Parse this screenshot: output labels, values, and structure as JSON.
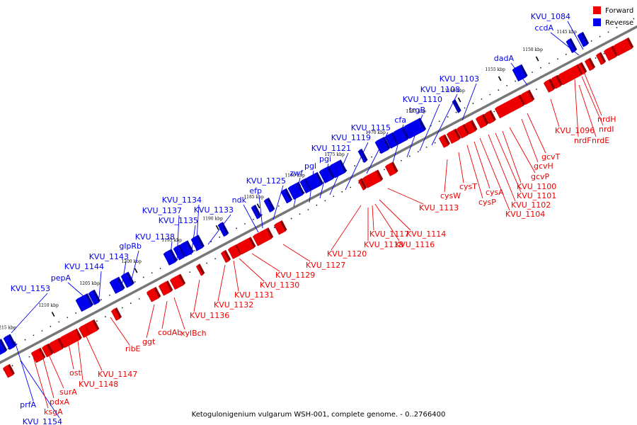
{
  "caption": "Ketogulonigenium vulgarum WSH-001, complete genome. - 0..2766400",
  "legend": [
    {
      "label": "Forward",
      "color": "#ee0000"
    },
    {
      "label": "Reverse",
      "color": "#0000ee"
    }
  ],
  "colors": {
    "forward": "#ee0000",
    "reverse": "#0000ee",
    "backbone": "#777777"
  },
  "ticks": [
    "1145 kbp",
    "1150 kbp",
    "1155 kbp",
    "1160 kbp",
    "1165 kbp",
    "1170 kbp",
    "1175 kbp",
    "1180 kbp",
    "1185 kbp",
    "1190 kbp",
    "1195 kbp",
    "1200 kbp",
    "1205 kbp",
    "1210 kbp",
    "1215 kbp"
  ],
  "reverse_labels": [
    "KVU_1084",
    "ccdA",
    "dadA",
    "KVU_1103",
    "KVU_1108",
    "KVU_1110",
    "trgB",
    "cfa",
    "KVU_1115",
    "KVU_1119",
    "KVU_1121",
    "pgi",
    "pgl",
    "zwf",
    "KVU_1125",
    "efp",
    "ndk",
    "KVU_1134",
    "KVU_1137",
    "KVU_1135",
    "KVU_1133",
    "KVU_1138",
    "glpRb",
    "KVU_1143",
    "KVU_1144",
    "pepA",
    "KVU_1153",
    "prfA",
    "KVU_1154"
  ],
  "forward_labels": [
    "nrdH",
    "nrdI",
    "nrdF",
    "nrdE",
    "KVU_1096",
    "gcvT",
    "gcvH",
    "gcvP",
    "KVU_1100",
    "KVU_1101",
    "KVU_1102",
    "KVU_1104",
    "cysA",
    "cysP",
    "cysT",
    "cysW",
    "KVU_1113",
    "KVU_1114",
    "KVU_1116",
    "KVU_1117",
    "KVU_1118",
    "KVU_1120",
    "KVU_1127",
    "KVU_1129",
    "KVU_1130",
    "KVU_1131",
    "KVU_1132",
    "KVU_1136",
    "xylBch",
    "codAb",
    "ggt",
    "ribE",
    "KVU_1147",
    "KVU_1148",
    "ost",
    "surA",
    "pdxA",
    "ksgA"
  ]
}
